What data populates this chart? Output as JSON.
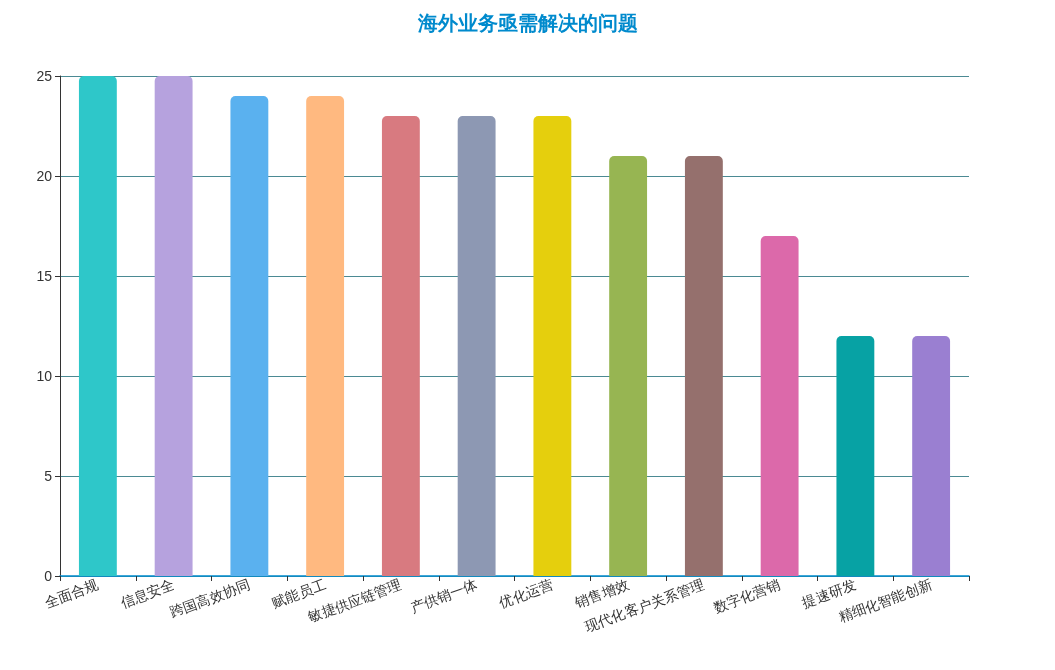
{
  "chart_data": {
    "type": "bar",
    "title": "海外业务亟需解决的问题",
    "categories": [
      "全面合规",
      "信息安全",
      "跨国高效协同",
      "赋能员工",
      "敏捷供应链管理",
      "产供销一体",
      "优化运营",
      "销售增效",
      "现代化客户关系管理",
      "数字化营销",
      "提速研发",
      "精细化智能创新"
    ],
    "values": [
      25,
      25,
      24,
      24,
      23,
      23,
      23,
      21,
      21,
      17,
      12,
      12
    ],
    "colors": [
      "#2ec7c9",
      "#b6a2de",
      "#5ab1ef",
      "#ffb980",
      "#d87a80",
      "#8d98b3",
      "#e5cf0d",
      "#97b552",
      "#95706d",
      "#dc69aa",
      "#07a2a4",
      "#9a7fd1"
    ],
    "ylim": [
      0,
      25
    ],
    "yticks": [
      0,
      5,
      10,
      15,
      20,
      25
    ],
    "grid": "y"
  }
}
